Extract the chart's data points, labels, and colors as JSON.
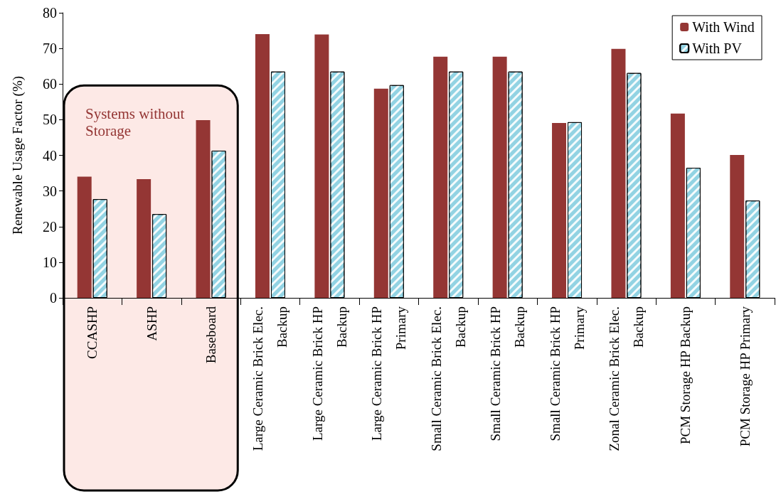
{
  "chart_data": {
    "type": "bar",
    "ylabel": "Renewable Usage Factor (%)",
    "categories": [
      "CCASHP",
      "ASHP",
      "Baseboard",
      "Large Ceramic Brick Elec. Backup",
      "Large Ceramic Brick HP Backup",
      "Large Ceramic Brick HP Primary",
      "Small Ceramic Brick Elec. Backup",
      "Small Ceramic Brick HP Backup",
      "Small Ceramic Brick HP Primary",
      "Zonal Ceramic Brick Elec. Backup",
      "PCM Storage HP Backup",
      "PCM Storage HP Primary"
    ],
    "series": [
      {
        "name": "With Wind",
        "color": "#943634",
        "values": [
          34,
          33.3,
          49.9,
          74,
          73.9,
          58.7,
          67.7,
          67.7,
          49.1,
          69.9,
          51.7,
          40.1
        ]
      },
      {
        "name": "With PV",
        "color": "#92d3e3",
        "values": [
          27.7,
          23.5,
          41.3,
          63.5,
          63.5,
          59.7,
          63.5,
          63.5,
          49.3,
          63.1,
          36.5,
          27.3
        ]
      }
    ],
    "ylim": [
      0,
      80
    ],
    "yticks": [
      0,
      10,
      20,
      30,
      40,
      50,
      60,
      70,
      80
    ],
    "grid": false,
    "legend": "top right",
    "bands": [
      {
        "axis": "x",
        "from": "CCASHP",
        "to": "Baseboard",
        "label": "Systems without Storage",
        "color": "#fde9e6"
      }
    ]
  }
}
